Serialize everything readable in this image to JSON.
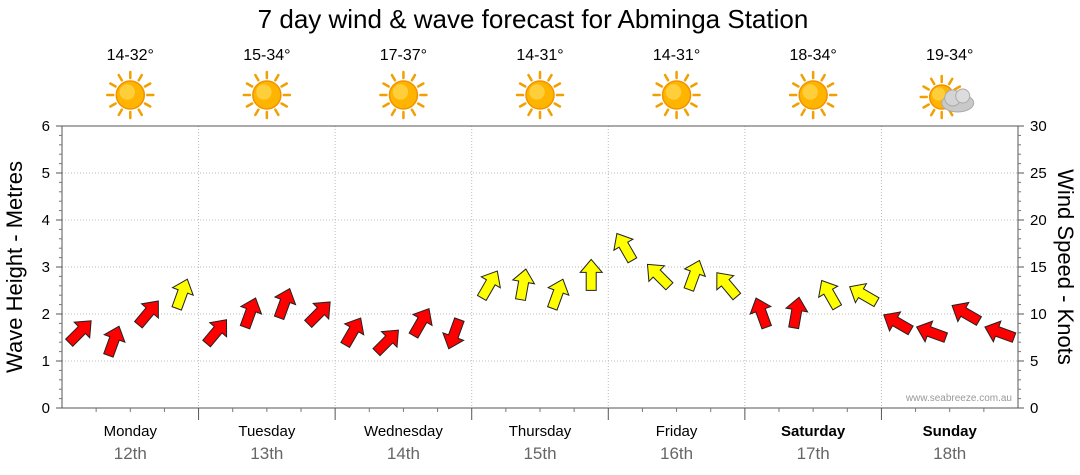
{
  "chart_data": {
    "type": "line",
    "title": "7 day wind & wave forecast for Abminga Station",
    "ylabel_left": "Wave Height - Metres",
    "ylabel_right": "Wind Speed - Knots",
    "ylim_left": [
      0,
      6
    ],
    "ylim_right": [
      0,
      30
    ],
    "yticks_left": [
      "0",
      "1",
      "2",
      "3",
      "4",
      "5",
      "6"
    ],
    "yticks_right": [
      "0",
      "5",
      "10",
      "15",
      "20",
      "25",
      "30"
    ],
    "grid": true,
    "credit": "www.seabreeze.com.au",
    "days": [
      {
        "name": "Monday",
        "date": "12th",
        "temp": "14-32°",
        "icon": "sun-icon",
        "bold": false
      },
      {
        "name": "Tuesday",
        "date": "13th",
        "temp": "15-34°",
        "icon": "sun-icon",
        "bold": false
      },
      {
        "name": "Wednesday",
        "date": "14th",
        "temp": "17-37°",
        "icon": "sun-icon",
        "bold": false
      },
      {
        "name": "Thursday",
        "date": "15th",
        "temp": "14-31°",
        "icon": "sun-icon",
        "bold": false
      },
      {
        "name": "Friday",
        "date": "16th",
        "temp": "14-31°",
        "icon": "sun-icon",
        "bold": false
      },
      {
        "name": "Saturday",
        "date": "17th",
        "temp": "18-34°",
        "icon": "sun-icon",
        "bold": true
      },
      {
        "name": "Sunday",
        "date": "18th",
        "temp": "19-34°",
        "icon": "partly-cloudy-icon",
        "bold": true
      }
    ],
    "wind_colors": {
      "low": "#ff0000",
      "mid": "#ffff00",
      "high": "#00ee00"
    },
    "wind_series": {
      "name": "",
      "x_hours": [
        0,
        6,
        12,
        18,
        24,
        30,
        36,
        42,
        48,
        54,
        60,
        66,
        72,
        78,
        84,
        90,
        96,
        102,
        108,
        114,
        120,
        126,
        132,
        138,
        144,
        150,
        156,
        162
      ],
      "speed_knots": [
        8,
        7,
        10,
        12,
        8,
        10,
        11,
        10,
        8,
        7,
        9,
        8,
        13,
        13,
        12,
        14,
        17,
        14,
        14,
        13,
        10,
        10,
        12,
        12,
        9,
        8,
        10,
        8
      ],
      "direction_deg": [
        45,
        20,
        40,
        20,
        40,
        20,
        20,
        45,
        30,
        45,
        30,
        200,
        30,
        10,
        20,
        0,
        330,
        315,
        20,
        320,
        340,
        10,
        330,
        300,
        300,
        290,
        300,
        290
      ]
    }
  }
}
